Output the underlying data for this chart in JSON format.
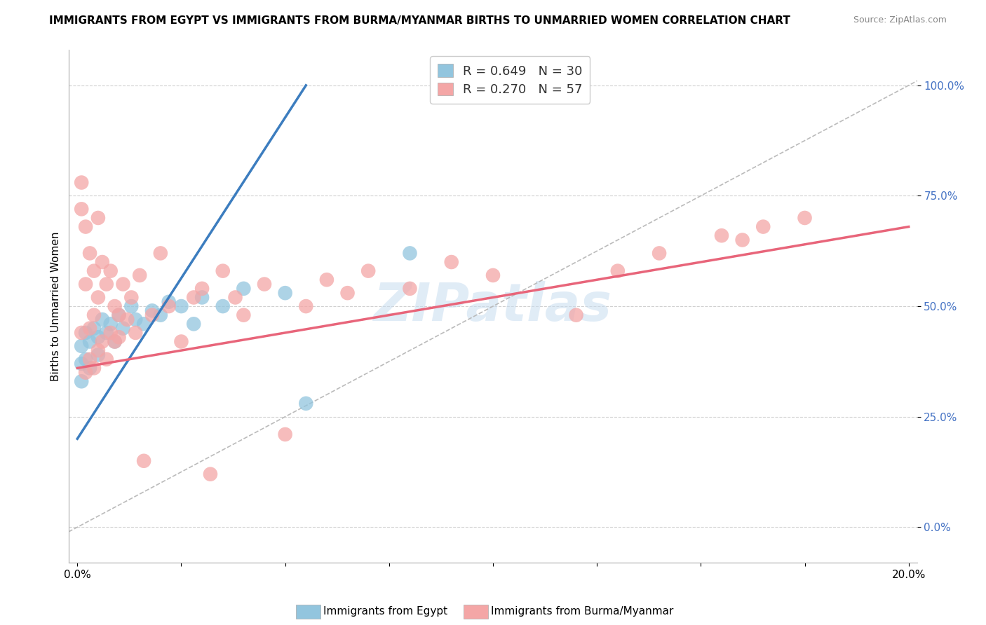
{
  "title": "IMMIGRANTS FROM EGYPT VS IMMIGRANTS FROM BURMA/MYANMAR BIRTHS TO UNMARRIED WOMEN CORRELATION CHART",
  "source": "Source: ZipAtlas.com",
  "ylabel": "Births to Unmarried Women",
  "xlabel_egypt": "Immigrants from Egypt",
  "xlabel_burma": "Immigrants from Burma/Myanmar",
  "watermark": "ZIPatlas",
  "egypt_R": 0.649,
  "egypt_N": 30,
  "burma_R": 0.27,
  "burma_N": 57,
  "xlim": [
    -0.002,
    0.202
  ],
  "ylim": [
    -0.08,
    1.08
  ],
  "yticks": [
    0.0,
    0.25,
    0.5,
    0.75,
    1.0
  ],
  "ytick_labels": [
    "0.0%",
    "25.0%",
    "50.0%",
    "75.0%",
    "100.0%"
  ],
  "egypt_color": "#92c5de",
  "burma_color": "#f4a6a6",
  "egypt_line_color": "#3c7dbf",
  "burma_line_color": "#e8657a",
  "diagonal_color": "#bbbbbb",
  "egypt_scatter_x": [
    0.001,
    0.001,
    0.001,
    0.002,
    0.002,
    0.003,
    0.003,
    0.004,
    0.005,
    0.005,
    0.006,
    0.007,
    0.008,
    0.009,
    0.01,
    0.011,
    0.013,
    0.014,
    0.016,
    0.018,
    0.02,
    0.022,
    0.025,
    0.028,
    0.03,
    0.035,
    0.04,
    0.05,
    0.055,
    0.08
  ],
  "egypt_scatter_y": [
    0.41,
    0.37,
    0.33,
    0.44,
    0.38,
    0.42,
    0.36,
    0.45,
    0.43,
    0.39,
    0.47,
    0.44,
    0.46,
    0.42,
    0.48,
    0.45,
    0.5,
    0.47,
    0.46,
    0.49,
    0.48,
    0.51,
    0.5,
    0.46,
    0.52,
    0.5,
    0.54,
    0.53,
    0.28,
    0.62
  ],
  "burma_scatter_x": [
    0.001,
    0.001,
    0.001,
    0.002,
    0.002,
    0.002,
    0.003,
    0.003,
    0.003,
    0.004,
    0.004,
    0.004,
    0.005,
    0.005,
    0.005,
    0.006,
    0.006,
    0.007,
    0.007,
    0.008,
    0.008,
    0.009,
    0.009,
    0.01,
    0.01,
    0.011,
    0.012,
    0.013,
    0.014,
    0.015,
    0.016,
    0.018,
    0.02,
    0.022,
    0.025,
    0.028,
    0.03,
    0.032,
    0.035,
    0.038,
    0.04,
    0.045,
    0.05,
    0.055,
    0.06,
    0.065,
    0.07,
    0.08,
    0.09,
    0.1,
    0.12,
    0.14,
    0.16,
    0.13,
    0.175,
    0.165,
    0.155
  ],
  "burma_scatter_y": [
    0.78,
    0.72,
    0.44,
    0.68,
    0.55,
    0.35,
    0.62,
    0.45,
    0.38,
    0.58,
    0.48,
    0.36,
    0.7,
    0.52,
    0.4,
    0.6,
    0.42,
    0.55,
    0.38,
    0.58,
    0.44,
    0.5,
    0.42,
    0.48,
    0.43,
    0.55,
    0.47,
    0.52,
    0.44,
    0.57,
    0.15,
    0.48,
    0.62,
    0.5,
    0.42,
    0.52,
    0.54,
    0.12,
    0.58,
    0.52,
    0.48,
    0.55,
    0.21,
    0.5,
    0.56,
    0.53,
    0.58,
    0.54,
    0.6,
    0.57,
    0.48,
    0.62,
    0.65,
    0.58,
    0.7,
    0.68,
    0.66
  ],
  "egypt_line_x0": 0.0,
  "egypt_line_y0": 0.2,
  "egypt_line_x1": 0.055,
  "egypt_line_y1": 1.0,
  "burma_line_x0": 0.0,
  "burma_line_y0": 0.36,
  "burma_line_x1": 0.2,
  "burma_line_y1": 0.68,
  "title_fontsize": 11,
  "axis_label_fontsize": 11,
  "tick_fontsize": 11,
  "legend_fontsize": 13
}
